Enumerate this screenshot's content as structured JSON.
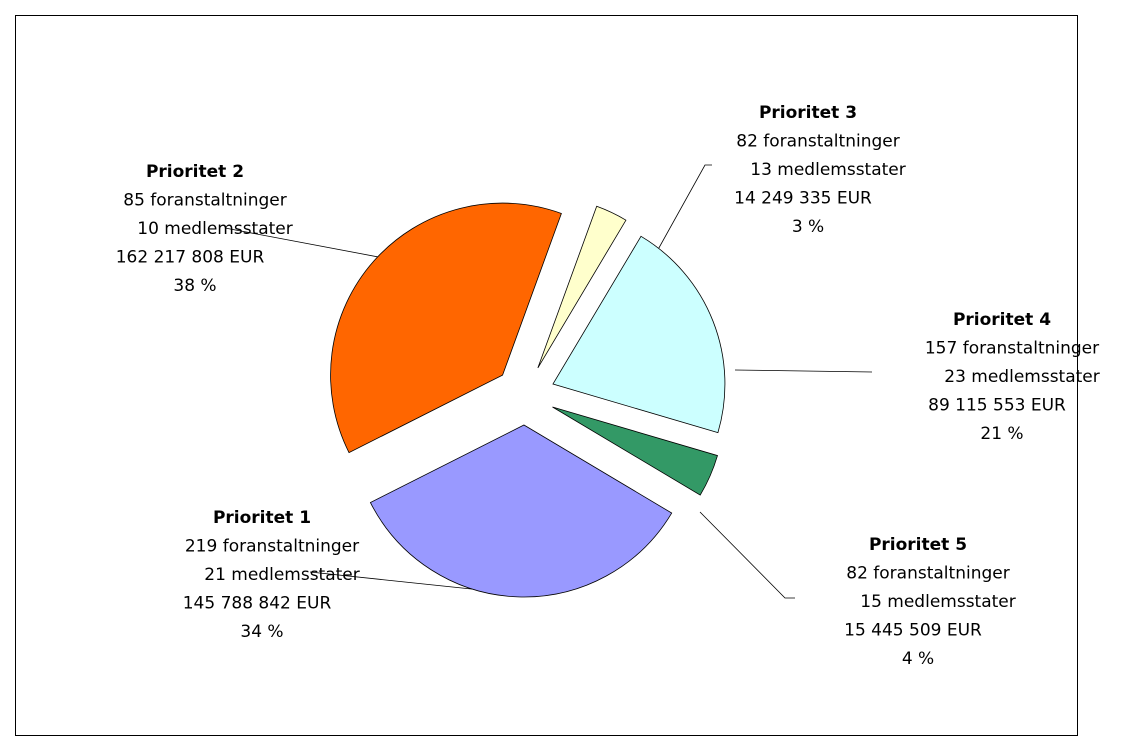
{
  "chart_data": {
    "type": "pie",
    "categories": [
      "Prioritet 3",
      "Prioritet 4",
      "Prioritet 5",
      "Prioritet 1",
      "Prioritet 2"
    ],
    "values": [
      3,
      21,
      4,
      34,
      38
    ],
    "value_labels": [
      "3 %",
      "21 %",
      "4 %",
      "34 %",
      "38 %"
    ],
    "details": [
      [
        "82 foranstaltninger",
        "13 medlemsstater",
        "14 249 335 EUR"
      ],
      [
        "157 foranstaltninger",
        "23 medlemsstater",
        "89 115 553 EUR"
      ],
      [
        "82 foranstaltninger",
        "15 medlemsstater",
        "15 445 509 EUR"
      ],
      [
        "219 foranstaltninger",
        "21 medlemsstater",
        "145 788 842 EUR"
      ],
      [
        "85 foranstaltninger",
        "10 medlemsstater",
        "162 217 808 EUR"
      ]
    ],
    "colors": [
      "#ffffcc",
      "#ccffff",
      "#339966",
      "#9999ff",
      "#ff6600"
    ]
  }
}
